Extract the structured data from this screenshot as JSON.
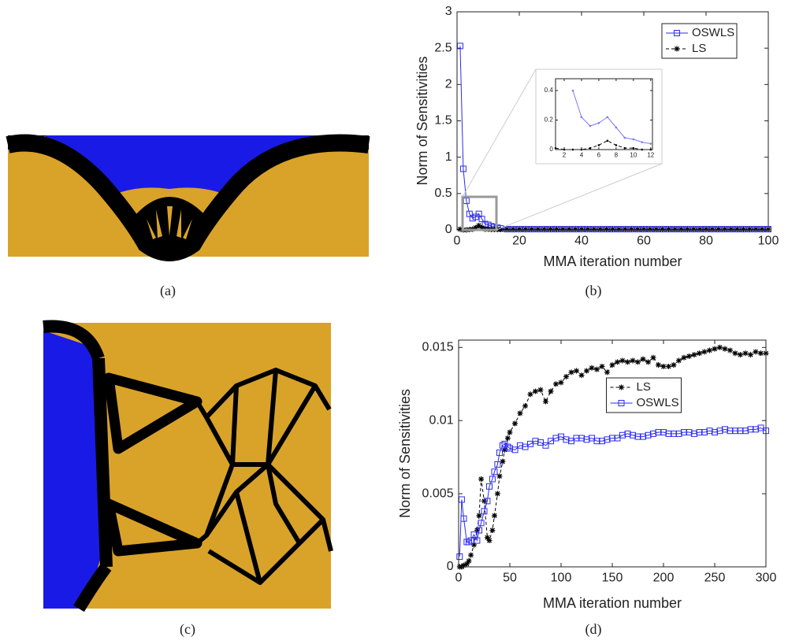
{
  "captions": [
    "(a)",
    "(b)",
    "(c)",
    "(d)"
  ],
  "chart_data": [
    {
      "type": "line",
      "xlabel": "MMA iteration number",
      "ylabel": "Norm of Sensitivities",
      "xlim": [
        0,
        100
      ],
      "ylim": [
        0,
        3
      ],
      "xticks": [
        0,
        20,
        40,
        60,
        80,
        100
      ],
      "yticks": [
        0,
        0.5,
        1,
        1.5,
        2,
        2.5,
        3
      ],
      "legend": "northeast",
      "x": [
        1,
        2,
        3,
        4,
        5,
        6,
        7,
        8,
        9,
        10,
        11,
        12,
        13,
        14,
        16,
        18,
        20,
        22,
        24,
        26,
        28,
        30,
        32,
        34,
        36,
        38,
        40,
        42,
        44,
        46,
        48,
        50,
        52,
        54,
        56,
        58,
        60,
        62,
        64,
        66,
        68,
        70,
        72,
        74,
        76,
        78,
        80,
        82,
        84,
        86,
        88,
        90,
        92,
        94,
        96,
        98,
        100
      ],
      "series": [
        {
          "name": "OSWLS",
          "color": "#2b2bf0",
          "marker": "square",
          "linestyle": "solid",
          "values": [
            2.53,
            0.84,
            0.4,
            0.22,
            0.16,
            0.18,
            0.22,
            0.15,
            0.08,
            0.07,
            0.05,
            0.04,
            0.03,
            0.02,
            0.01,
            0.01,
            0.01,
            0.01,
            0.01,
            0.01,
            0.01,
            0.01,
            0.01,
            0.01,
            0.01,
            0.01,
            0.01,
            0.01,
            0.01,
            0.01,
            0.01,
            0.01,
            0.01,
            0.01,
            0.01,
            0.01,
            0.01,
            0.01,
            0.01,
            0.01,
            0.01,
            0.01,
            0.01,
            0.01,
            0.01,
            0.01,
            0.01,
            0.01,
            0.01,
            0.01,
            0.01,
            0.01,
            0.01,
            0.01,
            0.01,
            0.01,
            0.01
          ]
        },
        {
          "name": "LS",
          "color": "#000000",
          "marker": "star",
          "linestyle": "dashed",
          "values": [
            0.01,
            0,
            0,
            0.005,
            0.01,
            0.03,
            0.06,
            0.03,
            0.01,
            0.01,
            0.005,
            0.005,
            0.005,
            0.005,
            0.01,
            0.01,
            0.01,
            0.01,
            0.01,
            0.01,
            0.01,
            0.01,
            0.01,
            0.01,
            0.01,
            0.01,
            0.01,
            0.01,
            0.01,
            0.01,
            0.01,
            0.01,
            0.01,
            0.01,
            0.01,
            0.01,
            0.01,
            0.01,
            0.01,
            0.01,
            0.01,
            0.01,
            0.01,
            0.01,
            0.01,
            0.01,
            0.01,
            0.01,
            0.01,
            0.01,
            0.01,
            0.01,
            0.01,
            0.01,
            0.01,
            0.01,
            0.01
          ]
        }
      ]
    },
    {
      "type": "line",
      "xlim": [
        1,
        12.2
      ],
      "ylim": [
        0,
        0.48
      ],
      "xticks": [
        2,
        4,
        6,
        8,
        10,
        12
      ],
      "yticks": [
        0,
        0.2,
        0.4
      ],
      "x": [
        1,
        2,
        3,
        4,
        5,
        6,
        7,
        8,
        9,
        10,
        11,
        12
      ],
      "series": [
        {
          "color": "#7a7aff",
          "marker": "dot",
          "linestyle": "solid",
          "values": [
            null,
            null,
            0.4,
            0.22,
            0.16,
            0.18,
            0.22,
            0.15,
            0.08,
            0.07,
            0.05,
            0.04
          ]
        },
        {
          "color": "#000000",
          "marker": "dot",
          "linestyle": "dashed",
          "values": [
            0.01,
            0,
            0,
            0,
            0.01,
            0.03,
            0.06,
            0.03,
            0.01,
            0.01,
            0,
            0
          ]
        }
      ]
    },
    {
      "type": "line",
      "xlabel": "MMA iteration number",
      "ylabel": "Norm of Sensitivities",
      "xlim": [
        0,
        300
      ],
      "ylim": [
        0,
        0.0155
      ],
      "xticks": [
        0,
        50,
        100,
        150,
        200,
        250,
        300
      ],
      "yticks": [
        0,
        0.005,
        0.01,
        0.015
      ],
      "legend": "north",
      "x": [
        1,
        3,
        5,
        8,
        10,
        12,
        15,
        18,
        20,
        22,
        25,
        28,
        30,
        33,
        35,
        38,
        40,
        43,
        45,
        48,
        50,
        55,
        60,
        65,
        70,
        75,
        80,
        85,
        90,
        95,
        100,
        105,
        110,
        115,
        120,
        125,
        130,
        135,
        140,
        145,
        150,
        155,
        160,
        165,
        170,
        175,
        180,
        185,
        190,
        195,
        200,
        205,
        210,
        215,
        220,
        225,
        230,
        235,
        240,
        245,
        250,
        255,
        260,
        265,
        270,
        275,
        280,
        285,
        290,
        295,
        300
      ],
      "series": [
        {
          "name": "LS",
          "color": "#000000",
          "marker": "star",
          "linestyle": "dashed",
          "values": [
            0,
            0,
            0.0001,
            0.0002,
            0.0004,
            0.0008,
            0.0015,
            0.0025,
            0.0035,
            0.006,
            0.0045,
            0.002,
            0.0018,
            0.0025,
            0.0035,
            0.005,
            0.0062,
            0.0072,
            0.008,
            0.0088,
            0.0092,
            0.0098,
            0.0105,
            0.011,
            0.0118,
            0.012,
            0.0121,
            0.0113,
            0.012,
            0.0125,
            0.0126,
            0.013,
            0.0133,
            0.0134,
            0.0131,
            0.0134,
            0.0136,
            0.0135,
            0.0137,
            0.0133,
            0.0138,
            0.014,
            0.0141,
            0.014,
            0.0141,
            0.014,
            0.0142,
            0.014,
            0.0143,
            0.0138,
            0.0137,
            0.0137,
            0.0138,
            0.0141,
            0.0143,
            0.0144,
            0.0145,
            0.0146,
            0.0147,
            0.0148,
            0.0149,
            0.015,
            0.0149,
            0.0148,
            0.0146,
            0.0145,
            0.0146,
            0.0145,
            0.0147,
            0.0146,
            0.0146
          ]
        },
        {
          "name": "OSWLS",
          "color": "#2b2bf0",
          "marker": "square",
          "linestyle": "solid",
          "values": [
            0.0007,
            0.0046,
            0.0033,
            0.0017,
            0.0017,
            0.0018,
            0.0022,
            0.0018,
            0.0025,
            0.003,
            0.0038,
            0.0045,
            0.0055,
            0.006,
            0.0065,
            0.007,
            0.0078,
            0.0083,
            0.0084,
            0.0082,
            0.0081,
            0.008,
            0.0083,
            0.0082,
            0.0084,
            0.0086,
            0.0085,
            0.0083,
            0.0086,
            0.0088,
            0.0089,
            0.0087,
            0.0086,
            0.0088,
            0.0088,
            0.0087,
            0.0088,
            0.0086,
            0.0086,
            0.0087,
            0.0088,
            0.0088,
            0.009,
            0.0091,
            0.009,
            0.0089,
            0.0089,
            0.009,
            0.0091,
            0.0092,
            0.0092,
            0.0091,
            0.0091,
            0.0091,
            0.0092,
            0.0092,
            0.0091,
            0.0092,
            0.0092,
            0.0093,
            0.0092,
            0.0093,
            0.0094,
            0.0093,
            0.0093,
            0.0093,
            0.0093,
            0.0094,
            0.0094,
            0.0095,
            0.0093
          ]
        }
      ]
    }
  ]
}
